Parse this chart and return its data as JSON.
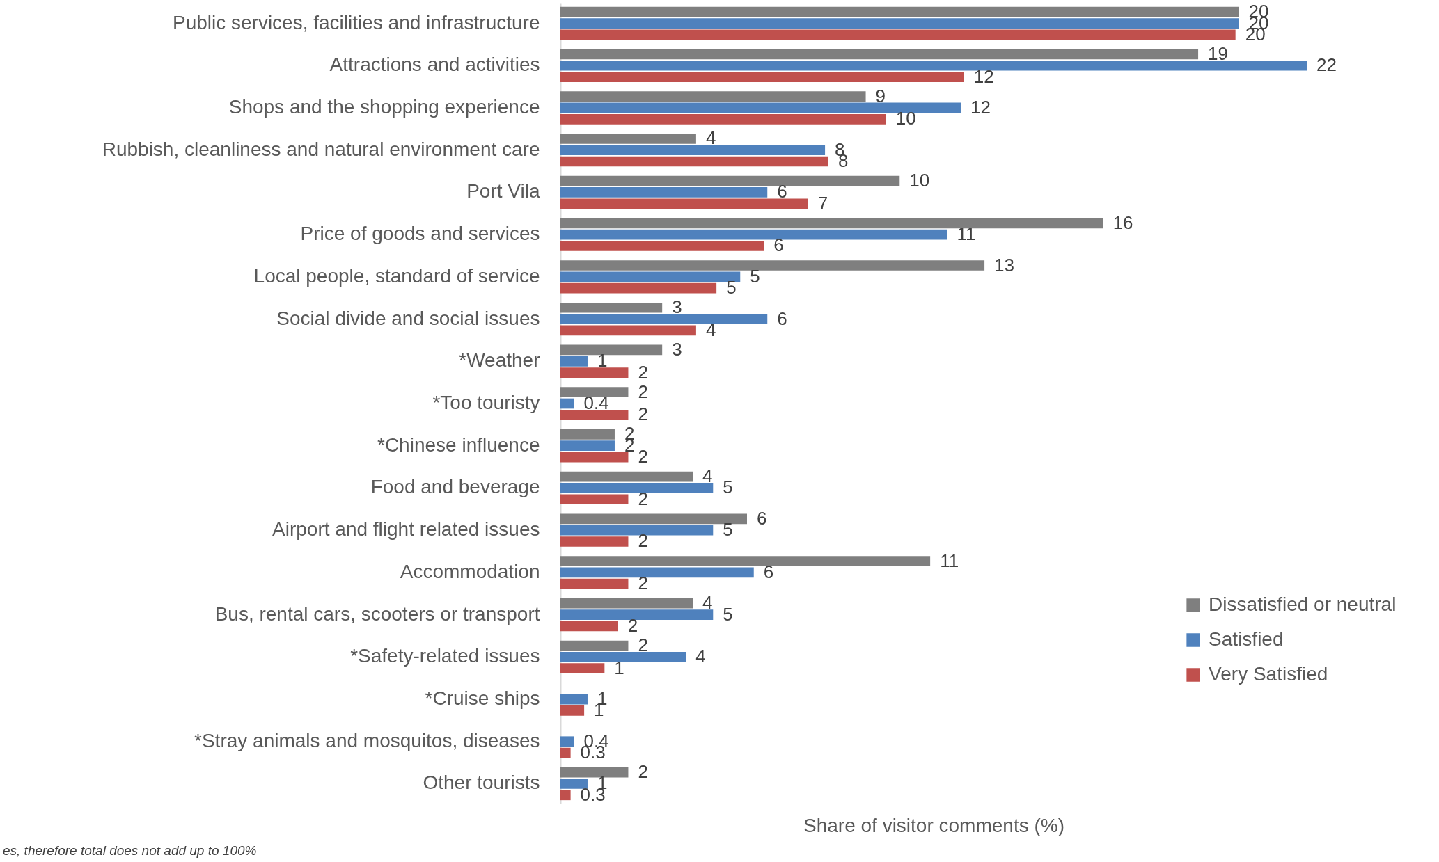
{
  "chart_data": {
    "type": "bar",
    "orientation": "horizontal",
    "categories": [
      "Public services, facilities and infrastructure",
      "Attractions and activities",
      "Shops and the shopping experience",
      "Rubbish, cleanliness and natural environment care",
      "Port Vila",
      "Price of goods and services",
      "Local people, standard of service",
      "Social divide and social issues",
      "*Weather",
      "*Too touristy",
      "*Chinese influence",
      "Food and beverage",
      "Airport and flight related issues",
      "Accommodation",
      "Bus, rental cars, scooters or transport",
      "*Safety-related issues",
      "*Cruise ships",
      "*Stray animals and mosquitos, diseases",
      "Other tourists"
    ],
    "series": [
      {
        "name": "Dissatisfied or neutral",
        "color": "#7f7f7f",
        "values": [
          20.0,
          18.8,
          9.0,
          4.0,
          10.0,
          16.0,
          12.5,
          3.0,
          3.0,
          2.0,
          1.6,
          3.9,
          5.5,
          10.9,
          3.9,
          2.0,
          null,
          null,
          2.0
        ],
        "value_labels": [
          "20",
          "19",
          "9",
          "4",
          "10",
          "16",
          "13",
          "3",
          "3",
          "2",
          "2",
          "4",
          "6",
          "11",
          "4",
          "2",
          null,
          null,
          "2"
        ]
      },
      {
        "name": "Satisfied",
        "color": "#4f81bd",
        "values": [
          20.0,
          22.0,
          11.8,
          7.8,
          6.1,
          11.4,
          5.3,
          6.1,
          0.8,
          0.4,
          1.6,
          4.5,
          4.5,
          5.7,
          4.5,
          3.7,
          0.8,
          0.4,
          0.8
        ],
        "value_labels": [
          "20",
          "22",
          "12",
          "8",
          "6",
          "11",
          "5",
          "6",
          "1",
          "0.4",
          "2",
          "5",
          "5",
          "6",
          "5",
          "4",
          "1",
          "0.4",
          "1"
        ]
      },
      {
        "name": "Very Satisfied",
        "color": "#c0504d",
        "values": [
          19.9,
          11.9,
          9.6,
          7.9,
          7.3,
          6.0,
          4.6,
          4.0,
          2.0,
          2.0,
          2.0,
          2.0,
          2.0,
          2.0,
          1.7,
          1.3,
          0.7,
          0.3,
          0.3
        ],
        "value_labels": [
          "20",
          "12",
          "10",
          "8",
          "7",
          "6",
          "5",
          "4",
          "2",
          "2",
          "2",
          "2",
          "2",
          "2",
          "2",
          "1",
          "1",
          "0.3",
          "0.3"
        ]
      }
    ],
    "xlabel": "Share of visitor comments (%)",
    "legend": "right",
    "tick_labels": "y",
    "annotations": [
      "es, therefore total does not add up to 100%"
    ]
  }
}
